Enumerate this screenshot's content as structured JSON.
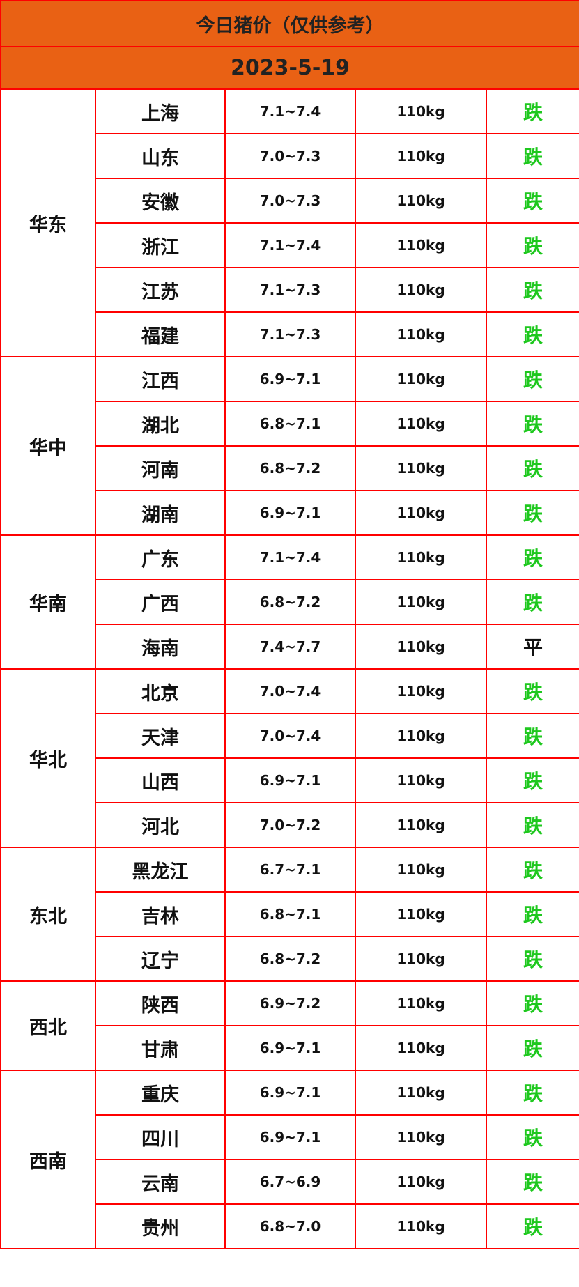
{
  "title": "今日猪价（仅供参考）",
  "date": "2023-5-19",
  "colors": {
    "header_bg": "#e96114",
    "border": "#ff0000",
    "down": "#1ec81e",
    "flat": "#111111"
  },
  "regions": [
    {
      "name": "华东",
      "rows": [
        {
          "province": "上海",
          "price": "7.1~7.4",
          "weight": "110kg",
          "trend": "跌"
        },
        {
          "province": "山东",
          "price": "7.0~7.3",
          "weight": "110kg",
          "trend": "跌"
        },
        {
          "province": "安徽",
          "price": "7.0~7.3",
          "weight": "110kg",
          "trend": "跌"
        },
        {
          "province": "浙江",
          "price": "7.1~7.4",
          "weight": "110kg",
          "trend": "跌"
        },
        {
          "province": "江苏",
          "price": "7.1~7.3",
          "weight": "110kg",
          "trend": "跌"
        },
        {
          "province": "福建",
          "price": "7.1~7.3",
          "weight": "110kg",
          "trend": "跌"
        }
      ]
    },
    {
      "name": "华中",
      "rows": [
        {
          "province": "江西",
          "price": "6.9~7.1",
          "weight": "110kg",
          "trend": "跌"
        },
        {
          "province": "湖北",
          "price": "6.8~7.1",
          "weight": "110kg",
          "trend": "跌"
        },
        {
          "province": "河南",
          "price": "6.8~7.2",
          "weight": "110kg",
          "trend": "跌"
        },
        {
          "province": "湖南",
          "price": "6.9~7.1",
          "weight": "110kg",
          "trend": "跌"
        }
      ]
    },
    {
      "name": "华南",
      "rows": [
        {
          "province": "广东",
          "price": "7.1~7.4",
          "weight": "110kg",
          "trend": "跌"
        },
        {
          "province": "广西",
          "price": "6.8~7.2",
          "weight": "110kg",
          "trend": "跌"
        },
        {
          "province": "海南",
          "price": "7.4~7.7",
          "weight": "110kg",
          "trend": "平"
        }
      ]
    },
    {
      "name": "华北",
      "rows": [
        {
          "province": "北京",
          "price": "7.0~7.4",
          "weight": "110kg",
          "trend": "跌"
        },
        {
          "province": "天津",
          "price": "7.0~7.4",
          "weight": "110kg",
          "trend": "跌"
        },
        {
          "province": "山西",
          "price": "6.9~7.1",
          "weight": "110kg",
          "trend": "跌"
        },
        {
          "province": "河北",
          "price": "7.0~7.2",
          "weight": "110kg",
          "trend": "跌"
        }
      ]
    },
    {
      "name": "东北",
      "rows": [
        {
          "province": "黑龙江",
          "price": "6.7~7.1",
          "weight": "110kg",
          "trend": "跌"
        },
        {
          "province": "吉林",
          "price": "6.8~7.1",
          "weight": "110kg",
          "trend": "跌"
        },
        {
          "province": "辽宁",
          "price": "6.8~7.2",
          "weight": "110kg",
          "trend": "跌"
        }
      ]
    },
    {
      "name": "西北",
      "rows": [
        {
          "province": "陕西",
          "price": "6.9~7.2",
          "weight": "110kg",
          "trend": "跌"
        },
        {
          "province": "甘肃",
          "price": "6.9~7.1",
          "weight": "110kg",
          "trend": "跌"
        }
      ]
    },
    {
      "name": "西南",
      "rows": [
        {
          "province": "重庆",
          "price": "6.9~7.1",
          "weight": "110kg",
          "trend": "跌"
        },
        {
          "province": "四川",
          "price": "6.9~7.1",
          "weight": "110kg",
          "trend": "跌"
        },
        {
          "province": "云南",
          "price": "6.7~6.9",
          "weight": "110kg",
          "trend": "跌"
        },
        {
          "province": "贵州",
          "price": "6.8~7.0",
          "weight": "110kg",
          "trend": "跌"
        }
      ]
    }
  ]
}
